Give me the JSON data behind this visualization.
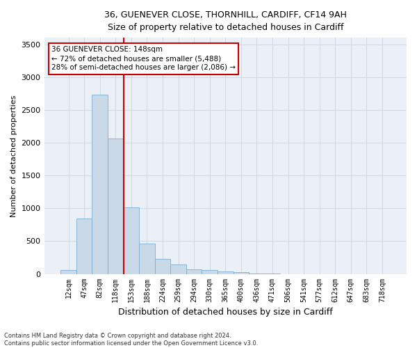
{
  "title_line1": "36, GUENEVER CLOSE, THORNHILL, CARDIFF, CF14 9AH",
  "title_line2": "Size of property relative to detached houses in Cardiff",
  "xlabel": "Distribution of detached houses by size in Cardiff",
  "ylabel": "Number of detached properties",
  "bar_labels": [
    "12sqm",
    "47sqm",
    "82sqm",
    "118sqm",
    "153sqm",
    "188sqm",
    "224sqm",
    "259sqm",
    "294sqm",
    "330sqm",
    "365sqm",
    "400sqm",
    "436sqm",
    "471sqm",
    "506sqm",
    "541sqm",
    "577sqm",
    "612sqm",
    "647sqm",
    "683sqm",
    "718sqm"
  ],
  "bar_values": [
    60,
    840,
    2730,
    2060,
    1010,
    460,
    230,
    145,
    70,
    55,
    35,
    25,
    10,
    5,
    0,
    0,
    0,
    0,
    0,
    0,
    0
  ],
  "bar_color": "#c9d9e8",
  "bar_edgecolor": "#7bafd4",
  "vline_index": 3.5,
  "annotation_text": "36 GUENEVER CLOSE: 148sqm\n← 72% of detached houses are smaller (5,488)\n28% of semi-detached houses are larger (2,086) →",
  "annotation_box_color": "#ffffff",
  "annotation_box_edge": "#cc0000",
  "vline_color": "#cc0000",
  "ylim": [
    0,
    3600
  ],
  "yticks": [
    0,
    500,
    1000,
    1500,
    2000,
    2500,
    3000,
    3500
  ],
  "footnote": "Contains HM Land Registry data © Crown copyright and database right 2024.\nContains public sector information licensed under the Open Government Licence v3.0.",
  "grid_color": "#d0d8e0",
  "bg_color": "#eaf0f6"
}
